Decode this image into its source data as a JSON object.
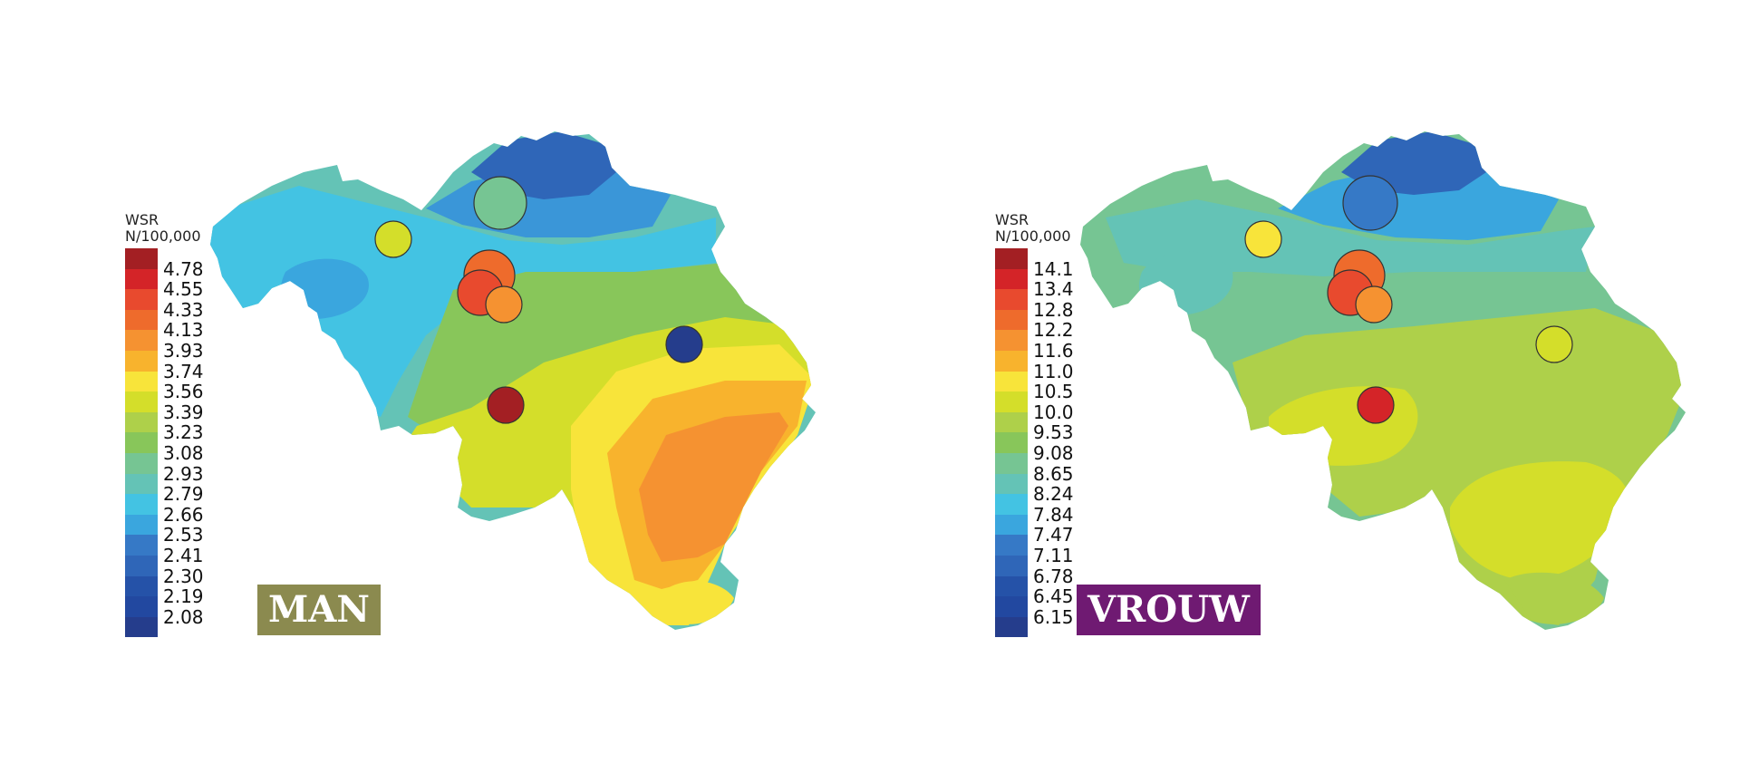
{
  "maps": [
    {
      "id": "man",
      "badge": {
        "text": "MAN",
        "color": "#8b8a4f"
      },
      "legend": {
        "title_line1": "WSR",
        "title_line2": "N/100,000",
        "colors": [
          "#a31f23",
          "#d42428",
          "#e84a2e",
          "#ee6b2c",
          "#f59231",
          "#f8b32d",
          "#f8e43a",
          "#d4de2a",
          "#aed04a",
          "#88c65a",
          "#76c593",
          "#64c3b6",
          "#43c3e3",
          "#3aa6de",
          "#3679c6",
          "#2f66b8",
          "#2552a8",
          "#2248a0",
          "#253d8c"
        ],
        "ticks": [
          "4.78",
          "4.55",
          "4.33",
          "4.13",
          "3.93",
          "3.74",
          "3.56",
          "3.39",
          "3.23",
          "3.08",
          "2.93",
          "2.79",
          "2.66",
          "2.53",
          "2.41",
          "2.30",
          "2.19",
          "2.08"
        ]
      },
      "colors": {
        "base": "#64c3b6",
        "north": "#2f66b8",
        "north2": "#3a96d8",
        "west": "#43c3e3",
        "westcore": "#3aa6de",
        "center": "#88c65a",
        "south": "#d4de2a",
        "southeast": "#f8e43a",
        "ardennes": "#f8b32d",
        "ardennes2": "#f59231"
      },
      "markers": [
        {
          "label": "circle-antwerpen",
          "color": "#76c593",
          "r": 29
        },
        {
          "label": "circle-gent",
          "color": "#d4de2a",
          "r": 20
        },
        {
          "label": "circle-brussel-north",
          "color": "#ee6b2c",
          "r": 28
        },
        {
          "label": "circle-brussel-west",
          "color": "#e84a2e",
          "r": 25
        },
        {
          "label": "circle-brussel-east",
          "color": "#f59231",
          "r": 20
        },
        {
          "label": "circle-liege",
          "color": "#253d8c",
          "r": 20
        },
        {
          "label": "circle-charleroi",
          "color": "#a31f23",
          "r": 20
        }
      ]
    },
    {
      "id": "vrouw",
      "badge": {
        "text": "VROUW",
        "color": "#6f1a72"
      },
      "legend": {
        "title_line1": "WSR",
        "title_line2": "N/100,000",
        "colors": [
          "#a31f23",
          "#d42428",
          "#e84a2e",
          "#ee6b2c",
          "#f59231",
          "#f8b32d",
          "#f8e43a",
          "#d4de2a",
          "#aed04a",
          "#88c65a",
          "#76c593",
          "#64c3b6",
          "#43c3e3",
          "#3aa6de",
          "#3679c6",
          "#2f66b8",
          "#2552a8",
          "#2248a0",
          "#253d8c"
        ],
        "ticks": [
          "14.1",
          "13.4",
          "12.8",
          "12.2",
          "11.6",
          "11.0",
          "10.5",
          "10.0",
          "9.53",
          "9.08",
          "8.65",
          "8.24",
          "7.84",
          "7.47",
          "7.11",
          "6.78",
          "6.45",
          "6.15"
        ]
      },
      "colors": {
        "base": "#76c593",
        "north": "#2f66b8",
        "north2": "#3aa6de",
        "west": "#64c3b6",
        "westcore": "#64c3b6",
        "center": "#88c65a",
        "south": "#aed04a",
        "southeast": "#d4de2a",
        "ardennes": "#d4de2a",
        "ardennes2": "#aed04a"
      },
      "markers": [
        {
          "label": "circle-antwerpen",
          "color": "#3679c6",
          "r": 30
        },
        {
          "label": "circle-gent",
          "color": "#f8e43a",
          "r": 20
        },
        {
          "label": "circle-brussel-north",
          "color": "#ee6b2c",
          "r": 28
        },
        {
          "label": "circle-brussel-west",
          "color": "#e84a2e",
          "r": 25
        },
        {
          "label": "circle-brussel-east",
          "color": "#f59231",
          "r": 20
        },
        {
          "label": "circle-liege",
          "color": "#d4de2a",
          "r": 20
        },
        {
          "label": "circle-charleroi",
          "color": "#d42428",
          "r": 20
        }
      ]
    }
  ]
}
